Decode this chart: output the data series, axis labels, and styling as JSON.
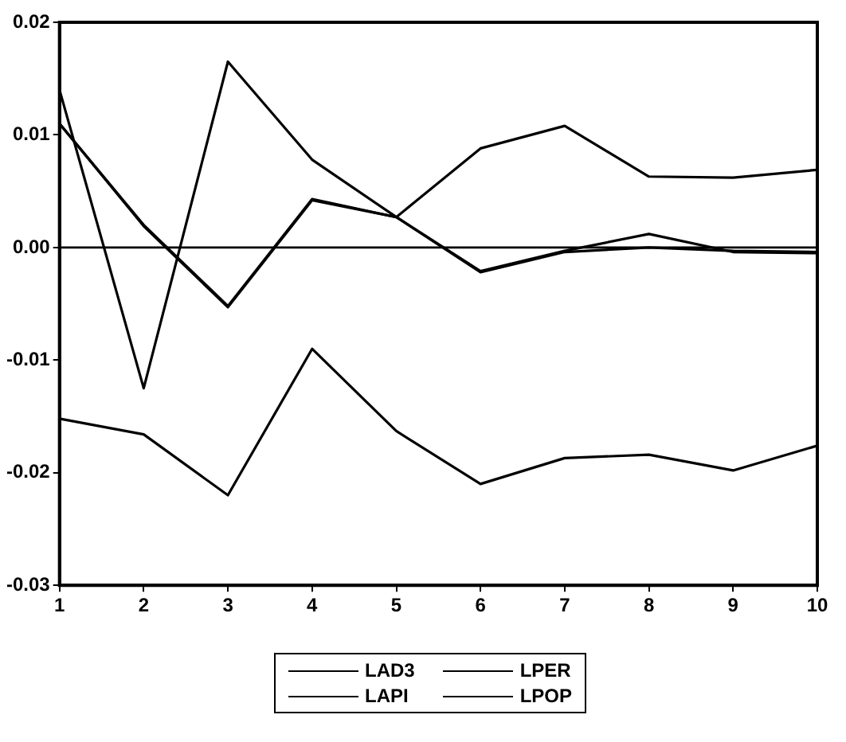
{
  "chart_data": {
    "type": "line",
    "xlim": [
      1,
      10
    ],
    "xticks": [
      1,
      2,
      3,
      4,
      5,
      6,
      7,
      8,
      9,
      10
    ],
    "ylim": [
      -0.03,
      0.02
    ],
    "yticks": [
      -0.03,
      -0.02,
      -0.01,
      {
        "value": 0,
        "label": "0.00"
      },
      0.01,
      0.02
    ],
    "grid": false,
    "legend": "bottom",
    "marker": "none",
    "line_style": "solid",
    "ref_lines": [
      {
        "axis": "y",
        "value": 0,
        "color": "#000000"
      }
    ],
    "x": [
      1,
      2,
      3,
      4,
      5,
      6,
      7,
      8,
      9,
      10
    ],
    "series": [
      {
        "name": "LAD3",
        "color": "#000000",
        "values": [
          0.014,
          -0.0125,
          0.0165,
          0.0078,
          0.0027,
          0.0088,
          0.0108,
          0.0063,
          0.0062,
          0.0069
        ]
      },
      {
        "name": "LPER",
        "color": "#000000",
        "values": [
          0.011,
          0.002,
          -0.0052,
          0.0043,
          0.0027,
          -0.0022,
          -0.0004,
          0.0,
          -0.0003,
          -0.0004
        ]
      },
      {
        "name": "LAPI",
        "color": "#000000",
        "values": [
          0.011,
          0.0019,
          -0.0053,
          0.0042,
          0.0027,
          -0.0021,
          -0.0003,
          0.0012,
          -0.0004,
          -0.0005
        ]
      },
      {
        "name": "LPOP",
        "color": "#000000",
        "values": [
          -0.0152,
          -0.0166,
          -0.022,
          -0.009,
          -0.0163,
          -0.021,
          -0.0187,
          -0.0184,
          -0.0198,
          -0.0176
        ]
      }
    ]
  }
}
